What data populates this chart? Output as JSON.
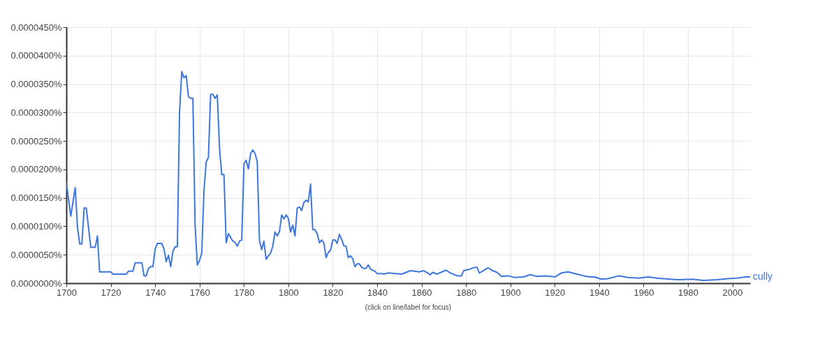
{
  "chart_data": {
    "type": "line",
    "x": [
      1700,
      1702,
      1704,
      1705,
      1706,
      1707,
      1708,
      1709,
      1711,
      1713,
      1714,
      1715,
      1720,
      1721,
      1727,
      1728,
      1730,
      1731,
      1734,
      1735,
      1736,
      1737,
      1738,
      1739,
      1740,
      1741,
      1743,
      1744,
      1745,
      1746,
      1747,
      1748,
      1749,
      1750,
      1751,
      1752,
      1753,
      1754,
      1755,
      1756,
      1757,
      1758,
      1759,
      1760,
      1761,
      1762,
      1763,
      1764,
      1765,
      1766,
      1767,
      1768,
      1769,
      1770,
      1771,
      1772,
      1773,
      1775,
      1776,
      1777,
      1778,
      1779,
      1780,
      1781,
      1782,
      1783,
      1784,
      1785,
      1786,
      1787,
      1788,
      1789,
      1790,
      1791,
      1792,
      1793,
      1794,
      1795,
      1796,
      1797,
      1798,
      1799,
      1800,
      1801,
      1802,
      1803,
      1804,
      1805,
      1806,
      1807,
      1808,
      1809,
      1810,
      1811,
      1812,
      1813,
      1814,
      1815,
      1816,
      1817,
      1818,
      1819,
      1820,
      1821,
      1822,
      1823,
      1824,
      1825,
      1826,
      1827,
      1828,
      1829,
      1830,
      1831,
      1832,
      1833,
      1834,
      1835,
      1836,
      1837,
      1839,
      1840,
      1842,
      1843,
      1845,
      1851,
      1855,
      1859,
      1861,
      1864,
      1865,
      1867,
      1871,
      1873,
      1876,
      1878,
      1879,
      1881,
      1882,
      1884,
      1885,
      1886,
      1887,
      1890,
      1892,
      1894,
      1896,
      1899,
      1902,
      1906,
      1909,
      1912,
      1916,
      1920,
      1923,
      1926,
      1930,
      1933,
      1936,
      1938,
      1941,
      1944,
      1949,
      1953,
      1958,
      1962,
      1966,
      1972,
      1976,
      1982,
      1987,
      1993,
      1998,
      2002,
      2006,
      2008
    ],
    "series": [
      {
        "name": "cully",
        "color": "#3d76dd",
        "values": [
          1.77e-05,
          1.18e-05,
          1.68e-05,
          9.9e-06,
          6.9e-06,
          6.9e-06,
          1.32e-05,
          1.32e-05,
          6.3e-06,
          6.3e-06,
          8.3e-06,
          2e-06,
          2e-06,
          1.6e-06,
          1.6e-06,
          2.1e-06,
          2.1e-06,
          3.6e-06,
          3.6e-06,
          1.3e-06,
          1.3e-06,
          2.6e-06,
          2.9e-06,
          2.9e-06,
          6e-06,
          7e-06,
          7e-06,
          6e-06,
          3.8e-06,
          4.9e-06,
          2.9e-06,
          5.6e-06,
          6.4e-06,
          6.4e-06,
          3.02e-05,
          3.72e-05,
          3.61e-05,
          3.65e-05,
          3.28e-05,
          3.25e-05,
          3.25e-05,
          1.02e-05,
          3.2e-06,
          4e-06,
          5.3e-06,
          1.63e-05,
          2.13e-05,
          2.21e-05,
          3.32e-05,
          3.32e-05,
          3.25e-05,
          3.31e-05,
          2.37e-05,
          1.91e-05,
          1.91e-05,
          7.1e-06,
          8.7e-06,
          7.4e-06,
          7.2e-06,
          6.5e-06,
          7.4e-06,
          7.6e-06,
          2.1e-05,
          2.16e-05,
          2.01e-05,
          2.28e-05,
          2.34e-05,
          2.28e-05,
          2.13e-05,
          7.5e-06,
          5.9e-06,
          7.4e-06,
          4.2e-06,
          4.8e-06,
          5.3e-06,
          6.5e-06,
          9e-06,
          8.3e-06,
          9.1e-06,
          1.2e-05,
          1.13e-05,
          1.2e-05,
          1.14e-05,
          9e-06,
          1.02e-05,
          8.3e-06,
          1.32e-05,
          1.34e-05,
          1.28e-05,
          1.42e-05,
          1.46e-05,
          1.43e-05,
          1.74e-05,
          9.4e-06,
          9.4e-06,
          8.7e-06,
          7.1e-06,
          7.6e-06,
          7.1e-06,
          4.5e-06,
          5.4e-06,
          5.8e-06,
          7.6e-06,
          7.6e-06,
          7e-06,
          8.6e-06,
          7.7e-06,
          6.6e-06,
          6.5e-06,
          4.5e-06,
          4.8e-06,
          4.3e-06,
          2.9e-06,
          3.4e-06,
          3.4e-06,
          2.8e-06,
          2.6e-06,
          2.6e-06,
          3.2e-06,
          2.5e-06,
          2.1e-06,
          1.7e-06,
          1.7e-06,
          1.6e-06,
          1.8e-06,
          1.6e-06,
          2.2e-06,
          2e-06,
          2.2e-06,
          1.5e-06,
          1.9e-06,
          1.6e-06,
          2.3e-06,
          1.8e-06,
          1.3e-06,
          1.3e-06,
          2.2e-06,
          2.4e-06,
          2.5e-06,
          2.8e-06,
          2.8e-06,
          1.8e-06,
          2e-06,
          2.7e-06,
          2.2e-06,
          1.9e-06,
          1.2e-06,
          1.3e-06,
          1e-06,
          1.1e-06,
          1.5e-06,
          1.2e-06,
          1.3e-06,
          1.1e-06,
          1.8e-06,
          2e-06,
          1.6e-06,
          1.3e-06,
          1.1e-06,
          1.1e-06,
          7e-07,
          8e-07,
          1.3e-06,
          1e-06,
          9e-07,
          1.1e-06,
          9e-07,
          7e-07,
          6e-07,
          7e-07,
          5e-07,
          6e-07,
          8e-07,
          9e-07,
          1.1e-06,
          1.1e-06
        ]
      }
    ],
    "xlim": [
      1700,
      2008
    ],
    "xticks": [
      1700,
      1720,
      1740,
      1760,
      1780,
      1800,
      1820,
      1840,
      1860,
      1880,
      1900,
      1920,
      1940,
      1960,
      1980,
      2000
    ],
    "ylim": [
      0,
      4.5e-05
    ],
    "yticks": [
      {
        "value": 0,
        "label": "0.0000000%"
      },
      {
        "value": 5e-06,
        "label": "0.0000050%"
      },
      {
        "value": 1e-05,
        "label": "0.0000100%"
      },
      {
        "value": 1.5e-05,
        "label": "0.0000150%"
      },
      {
        "value": 2e-05,
        "label": "0.0000200%"
      },
      {
        "value": 2.5e-05,
        "label": "0.0000250%"
      },
      {
        "value": 3e-05,
        "label": "0.0000300%"
      },
      {
        "value": 3.5e-05,
        "label": "0.0000350%"
      },
      {
        "value": 4e-05,
        "label": "0.0000400%"
      },
      {
        "value": 4.5e-05,
        "label": "0.0000450%"
      }
    ],
    "grid": true,
    "marker": "none",
    "line_style": "solid",
    "annotations": [
      "(click on line/label for focus)"
    ]
  }
}
